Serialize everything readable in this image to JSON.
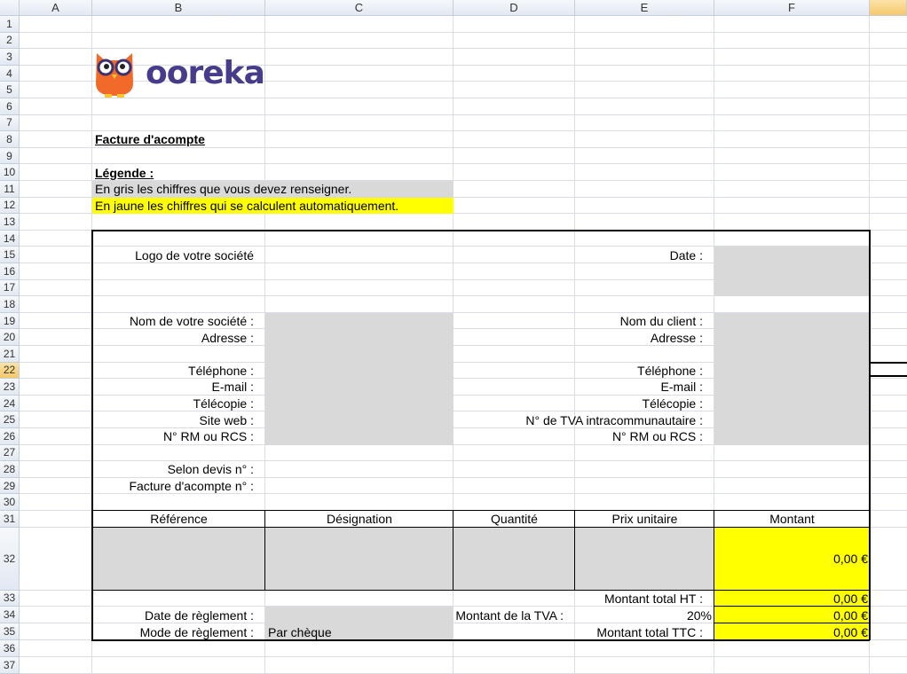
{
  "columns": [
    "A",
    "B",
    "C",
    "D",
    "E",
    "F",
    ""
  ],
  "rows": [
    1,
    2,
    3,
    4,
    5,
    6,
    7,
    8,
    9,
    10,
    11,
    12,
    13,
    14,
    15,
    16,
    17,
    18,
    19,
    20,
    21,
    22,
    23,
    24,
    25,
    26,
    27,
    28,
    29,
    30,
    31,
    32,
    33,
    34,
    35,
    36,
    37
  ],
  "selected_cell": "G22",
  "colors": {
    "gray": "#d9d9d9",
    "yellow": "#ffff00"
  },
  "logo": {
    "text": "ooreka",
    "color": "#473c8b",
    "owl_color": "#f26a2a"
  },
  "fills": [
    {
      "range": "B11:C11",
      "color": "gray"
    },
    {
      "range": "B12:C12",
      "color": "yellow"
    },
    {
      "range": "F15:F17",
      "color": "gray"
    },
    {
      "range": "C19:C26",
      "color": "gray"
    },
    {
      "range": "F19:F26",
      "color": "gray"
    },
    {
      "range": "B32:E32",
      "color": "gray"
    },
    {
      "range": "F32:F35",
      "color": "yellow"
    },
    {
      "range": "C34:C35",
      "color": "gray"
    }
  ],
  "cells": [
    {
      "ref": "B8",
      "text": "Facture d'acompte",
      "style": "title"
    },
    {
      "ref": "B10",
      "text": "Légende :",
      "style": "title"
    },
    {
      "ref": "B11",
      "text": "En gris les chiffres que vous devez renseigner."
    },
    {
      "ref": "B12",
      "text": "En jaune les chiffres qui se calculent automatiquement."
    },
    {
      "ref": "B15",
      "text": "Logo de votre société",
      "align": "right"
    },
    {
      "ref": "E15",
      "text": "Date :",
      "align": "right"
    },
    {
      "ref": "B19",
      "text": "Nom de votre société :",
      "align": "right"
    },
    {
      "ref": "B20",
      "text": "Adresse :",
      "align": "right"
    },
    {
      "ref": "B22",
      "text": "Téléphone :",
      "align": "right"
    },
    {
      "ref": "B23",
      "text": "E-mail :",
      "align": "right"
    },
    {
      "ref": "B24",
      "text": "Télécopie :",
      "align": "right"
    },
    {
      "ref": "B25",
      "text": "Site web :",
      "align": "right"
    },
    {
      "ref": "B26",
      "text": "N° RM ou RCS :",
      "align": "right"
    },
    {
      "ref": "E19",
      "text": "Nom du client :",
      "align": "right"
    },
    {
      "ref": "E20",
      "text": "Adresse :",
      "align": "right"
    },
    {
      "ref": "E22",
      "text": "Téléphone :",
      "align": "right"
    },
    {
      "ref": "E23",
      "text": "E-mail :",
      "align": "right"
    },
    {
      "ref": "E24",
      "text": "Télécopie :",
      "align": "right"
    },
    {
      "ref": "E25",
      "text": "N° de TVA intracommunautaire :",
      "align": "right"
    },
    {
      "ref": "E26",
      "text": "N° RM ou RCS :",
      "align": "right"
    },
    {
      "ref": "B28",
      "text": "Selon devis n° :",
      "align": "right"
    },
    {
      "ref": "B29",
      "text": "Facture d'acompte n° :",
      "align": "right"
    },
    {
      "ref": "B31",
      "text": "Référence",
      "align": "center"
    },
    {
      "ref": "C31",
      "text": "Désignation",
      "align": "center"
    },
    {
      "ref": "D31",
      "text": "Quantité",
      "align": "center"
    },
    {
      "ref": "E31",
      "text": "Prix unitaire",
      "align": "center"
    },
    {
      "ref": "F31",
      "text": "Montant",
      "align": "center"
    },
    {
      "ref": "F32",
      "text": "0,00 €",
      "align": "right"
    },
    {
      "ref": "E33",
      "text": "Montant total HT :",
      "align": "right"
    },
    {
      "ref": "F33",
      "text": "0,00 €",
      "align": "right"
    },
    {
      "ref": "B34",
      "text": "Date de règlement :",
      "align": "right"
    },
    {
      "ref": "D34",
      "text": "Montant de la TVA :",
      "align": "right"
    },
    {
      "ref": "E34",
      "text": "20%",
      "align": "right"
    },
    {
      "ref": "F34",
      "text": "0,00 €",
      "align": "right"
    },
    {
      "ref": "B35",
      "text": "Mode de règlement :",
      "align": "right"
    },
    {
      "ref": "C35",
      "text": "Par chèque",
      "align": "left"
    },
    {
      "ref": "E35",
      "text": "Montant total TTC :",
      "align": "right"
    },
    {
      "ref": "F35",
      "text": "0,00 €",
      "align": "right"
    }
  ]
}
